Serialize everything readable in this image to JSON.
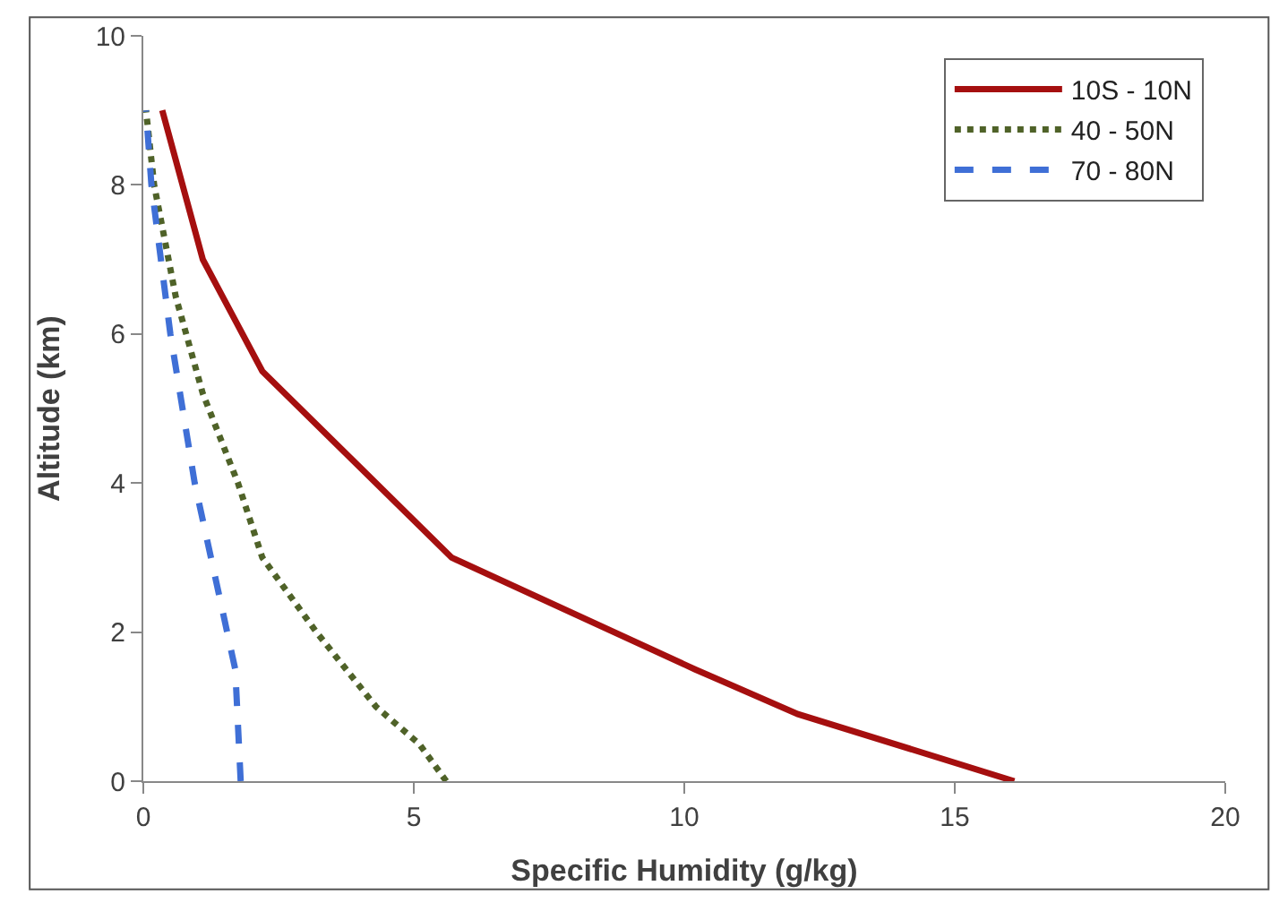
{
  "chart_data": {
    "type": "line",
    "xlabel": "Specific Humidity (g/kg)",
    "ylabel": "Altitude (km)",
    "xlim": [
      0,
      20
    ],
    "xticks": [
      0,
      5,
      10,
      15,
      20
    ],
    "ylim": [
      0,
      10
    ],
    "yticks": [
      0,
      2,
      4,
      6,
      8,
      10
    ],
    "legend": "top right",
    "marker": "none",
    "series": [
      {
        "name": "10S - 10N",
        "color": "#a50f0f",
        "line_style": "solid",
        "x": [
          16.1,
          12.1,
          10.2,
          5.7,
          2.2,
          1.1,
          0.35
        ],
        "values": [
          0,
          0.9,
          1.5,
          3.0,
          5.5,
          7.0,
          9.0
        ]
      },
      {
        "name": "40 - 50N",
        "color": "#4f6228",
        "line_style": "dotted",
        "x": [
          5.6,
          5.1,
          4.3,
          3.2,
          2.2,
          1.75,
          1.1,
          0.6,
          0.2,
          0.05
        ],
        "values": [
          0,
          0.5,
          1.0,
          2.0,
          3.0,
          4.0,
          5.2,
          6.5,
          8.0,
          9.0
        ]
      },
      {
        "name": "70 - 80N",
        "color": "#3f6fd6",
        "line_style": "dashed",
        "x": [
          1.8,
          1.7,
          0.95,
          0.5,
          0.15,
          0.05
        ],
        "values": [
          0,
          1.5,
          4.0,
          6.0,
          8.0,
          9.0
        ]
      }
    ]
  }
}
